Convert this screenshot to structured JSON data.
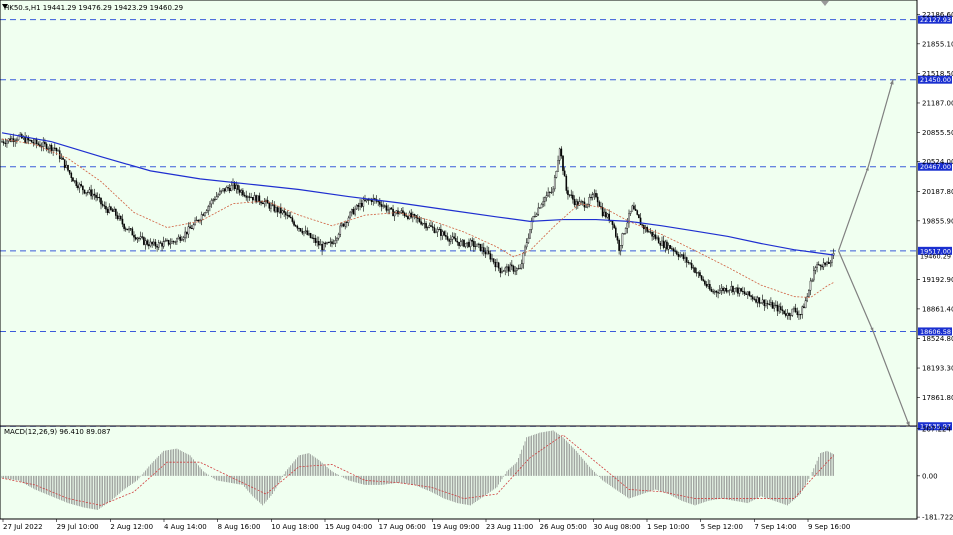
{
  "chart_data": {
    "type": "candlestick",
    "symbol_header": "HK50.s,H1  19441.29 19476.29 19423.29 19460.29",
    "indicator_header": "MACD(12,26,9) 96.410 89.087",
    "colors": {
      "background": "#f0fff0",
      "grid_level": "#3a5bd9",
      "ma_slow": "#1f2fd0",
      "ma_fast": "#d06040",
      "candle": "#000000",
      "arrow": "#808080",
      "macd_signal": "#d04040"
    },
    "price_axis": {
      "range": [
        17550,
        22350
      ],
      "ticks": [
        22186.6,
        21855.1,
        21518.5,
        21187.0,
        20855.5,
        20524.0,
        20187.8,
        19855.9,
        19192.9,
        18861.4,
        18524.8,
        18193.3,
        17861.8
      ]
    },
    "levels": [
      {
        "value": 22127.93,
        "label": "22127.93"
      },
      {
        "value": 21450.0,
        "label": "21450.00"
      },
      {
        "value": 20467.0,
        "label": "20467.00"
      },
      {
        "value": 19517.0,
        "label": "19517.00"
      },
      {
        "value": 18606.58,
        "label": "18606.58"
      },
      {
        "value": 17535.97,
        "label": "17535.97"
      }
    ],
    "current_price": {
      "value": 19460.29,
      "label": "19460.29"
    },
    "time_axis_labels": [
      "27 Jul 2022",
      "29 Jul 10:00",
      "2 Aug 12:00",
      "4 Aug 14:00",
      "8 Aug 16:00",
      "10 Aug 18:00",
      "15 Aug 04:00",
      "17 Aug 06:00",
      "19 Aug 09:00",
      "23 Aug 11:00",
      "26 Aug 05:00",
      "30 Aug 08:00",
      "1 Sep 10:00",
      "5 Sep 12:00",
      "7 Sep 14:00",
      "9 Sep 16:00"
    ],
    "close_path": [
      [
        0,
        20750
      ],
      [
        10,
        20800
      ],
      [
        22,
        20720
      ],
      [
        32,
        20680
      ],
      [
        44,
        20300
      ],
      [
        50,
        20200
      ],
      [
        56,
        20150
      ],
      [
        62,
        20000
      ],
      [
        68,
        19950
      ],
      [
        74,
        19800
      ],
      [
        80,
        19700
      ],
      [
        86,
        19620
      ],
      [
        92,
        19580
      ],
      [
        98,
        19600
      ],
      [
        104,
        19620
      ],
      [
        110,
        19700
      ],
      [
        116,
        19800
      ],
      [
        122,
        19950
      ],
      [
        128,
        20100
      ],
      [
        134,
        20200
      ],
      [
        140,
        20250
      ],
      [
        146,
        20180
      ],
      [
        152,
        20120
      ],
      [
        158,
        20080
      ],
      [
        164,
        20000
      ],
      [
        170,
        19950
      ],
      [
        176,
        19850
      ],
      [
        182,
        19750
      ],
      [
        188,
        19650
      ],
      [
        194,
        19560
      ],
      [
        200,
        19600
      ],
      [
        206,
        19800
      ],
      [
        212,
        19950
      ],
      [
        218,
        20050
      ],
      [
        224,
        20100
      ],
      [
        230,
        20050
      ],
      [
        236,
        19950
      ],
      [
        242,
        19950
      ],
      [
        248,
        19900
      ],
      [
        254,
        19850
      ],
      [
        260,
        19780
      ],
      [
        266,
        19720
      ],
      [
        272,
        19650
      ],
      [
        278,
        19600
      ],
      [
        284,
        19600
      ],
      [
        290,
        19550
      ],
      [
        296,
        19450
      ],
      [
        302,
        19300
      ],
      [
        308,
        19320
      ],
      [
        314,
        19300
      ],
      [
        318,
        19620
      ],
      [
        322,
        19900
      ],
      [
        328,
        20100
      ],
      [
        334,
        20200
      ],
      [
        338,
        20700
      ],
      [
        342,
        20200
      ],
      [
        348,
        20050
      ],
      [
        354,
        20050
      ],
      [
        360,
        20150
      ],
      [
        364,
        19950
      ],
      [
        370,
        19850
      ],
      [
        374,
        19550
      ],
      [
        378,
        19800
      ],
      [
        382,
        20000
      ],
      [
        388,
        19800
      ],
      [
        394,
        19700
      ],
      [
        400,
        19600
      ],
      [
        406,
        19550
      ],
      [
        412,
        19450
      ],
      [
        418,
        19350
      ],
      [
        424,
        19200
      ],
      [
        430,
        19050
      ],
      [
        436,
        19080
      ],
      [
        442,
        19100
      ],
      [
        448,
        19050
      ],
      [
        454,
        19000
      ],
      [
        460,
        18950
      ],
      [
        466,
        18900
      ],
      [
        472,
        18850
      ],
      [
        476,
        18800
      ],
      [
        480,
        18850
      ],
      [
        484,
        18800
      ],
      [
        488,
        19000
      ],
      [
        492,
        19300
      ],
      [
        496,
        19380
      ],
      [
        500,
        19350
      ],
      [
        504,
        19460
      ]
    ],
    "ma_slow_path": [
      [
        0,
        20850
      ],
      [
        30,
        20750
      ],
      [
        60,
        20580
      ],
      [
        90,
        20420
      ],
      [
        120,
        20330
      ],
      [
        150,
        20270
      ],
      [
        180,
        20210
      ],
      [
        210,
        20130
      ],
      [
        240,
        20060
      ],
      [
        270,
        19980
      ],
      [
        300,
        19900
      ],
      [
        320,
        19850
      ],
      [
        340,
        19870
      ],
      [
        360,
        19870
      ],
      [
        380,
        19850
      ],
      [
        400,
        19800
      ],
      [
        420,
        19740
      ],
      [
        440,
        19680
      ],
      [
        460,
        19600
      ],
      [
        480,
        19530
      ],
      [
        500,
        19480
      ],
      [
        504,
        19470
      ]
    ],
    "ma_fast_path": [
      [
        0,
        20780
      ],
      [
        20,
        20720
      ],
      [
        40,
        20560
      ],
      [
        60,
        20300
      ],
      [
        80,
        19950
      ],
      [
        100,
        19780
      ],
      [
        120,
        19850
      ],
      [
        140,
        20050
      ],
      [
        160,
        20080
      ],
      [
        180,
        19920
      ],
      [
        200,
        19800
      ],
      [
        220,
        19920
      ],
      [
        240,
        19950
      ],
      [
        260,
        19860
      ],
      [
        280,
        19730
      ],
      [
        300,
        19560
      ],
      [
        310,
        19450
      ],
      [
        320,
        19520
      ],
      [
        335,
        19800
      ],
      [
        350,
        20050
      ],
      [
        365,
        20000
      ],
      [
        380,
        19850
      ],
      [
        400,
        19700
      ],
      [
        420,
        19520
      ],
      [
        440,
        19330
      ],
      [
        460,
        19130
      ],
      [
        480,
        19000
      ],
      [
        490,
        18990
      ],
      [
        500,
        19120
      ],
      [
        504,
        19160
      ]
    ],
    "macd_axis": {
      "range": [
        -190,
        215
      ],
      "ticks": [
        207.224,
        0.0,
        -181.722
      ],
      "tick_labels": [
        "207.224",
        "0.00",
        "-181.722"
      ]
    },
    "macd_path": [
      [
        0,
        -10
      ],
      [
        10,
        -20
      ],
      [
        20,
        -60
      ],
      [
        30,
        -90
      ],
      [
        40,
        -120
      ],
      [
        50,
        -140
      ],
      [
        58,
        -150
      ],
      [
        66,
        -110
      ],
      [
        74,
        -60
      ],
      [
        82,
        -20
      ],
      [
        90,
        50
      ],
      [
        98,
        110
      ],
      [
        106,
        120
      ],
      [
        114,
        90
      ],
      [
        122,
        20
      ],
      [
        130,
        -20
      ],
      [
        138,
        -30
      ],
      [
        146,
        -40
      ],
      [
        152,
        -90
      ],
      [
        158,
        -130
      ],
      [
        164,
        -80
      ],
      [
        172,
        20
      ],
      [
        180,
        90
      ],
      [
        186,
        100
      ],
      [
        192,
        70
      ],
      [
        200,
        20
      ],
      [
        210,
        -20
      ],
      [
        220,
        -40
      ],
      [
        230,
        -40
      ],
      [
        240,
        -30
      ],
      [
        250,
        -40
      ],
      [
        260,
        -70
      ],
      [
        268,
        -100
      ],
      [
        276,
        -120
      ],
      [
        284,
        -130
      ],
      [
        292,
        -90
      ],
      [
        300,
        -50
      ],
      [
        306,
        20
      ],
      [
        312,
        60
      ],
      [
        318,
        170
      ],
      [
        326,
        190
      ],
      [
        334,
        200
      ],
      [
        340,
        170
      ],
      [
        348,
        110
      ],
      [
        356,
        40
      ],
      [
        364,
        -20
      ],
      [
        372,
        -60
      ],
      [
        380,
        -100
      ],
      [
        388,
        -80
      ],
      [
        396,
        -60
      ],
      [
        404,
        -80
      ],
      [
        412,
        -110
      ],
      [
        420,
        -130
      ],
      [
        428,
        -110
      ],
      [
        436,
        -100
      ],
      [
        444,
        -110
      ],
      [
        452,
        -120
      ],
      [
        460,
        -90
      ],
      [
        468,
        -110
      ],
      [
        476,
        -130
      ],
      [
        484,
        -80
      ],
      [
        490,
        0
      ],
      [
        496,
        100
      ],
      [
        500,
        110
      ],
      [
        504,
        96
      ]
    ],
    "macd_signal_path": [
      [
        0,
        -10
      ],
      [
        20,
        -40
      ],
      [
        40,
        -100
      ],
      [
        60,
        -130
      ],
      [
        80,
        -70
      ],
      [
        100,
        60
      ],
      [
        120,
        60
      ],
      [
        140,
        -10
      ],
      [
        160,
        -80
      ],
      [
        180,
        40
      ],
      [
        200,
        50
      ],
      [
        220,
        -20
      ],
      [
        240,
        -30
      ],
      [
        260,
        -50
      ],
      [
        280,
        -100
      ],
      [
        300,
        -80
      ],
      [
        320,
        80
      ],
      [
        340,
        180
      ],
      [
        360,
        60
      ],
      [
        380,
        -60
      ],
      [
        400,
        -70
      ],
      [
        420,
        -100
      ],
      [
        440,
        -100
      ],
      [
        460,
        -100
      ],
      [
        480,
        -100
      ],
      [
        500,
        60
      ],
      [
        504,
        89
      ]
    ],
    "projections": [
      {
        "from": [
          507,
          19517
        ],
        "to": [
          525,
          20467
        ],
        "end": [
          540,
          21450
        ]
      },
      {
        "from": [
          507,
          19517
        ],
        "to": [
          528,
          18606
        ],
        "end": [
          550,
          17535
        ]
      }
    ]
  }
}
